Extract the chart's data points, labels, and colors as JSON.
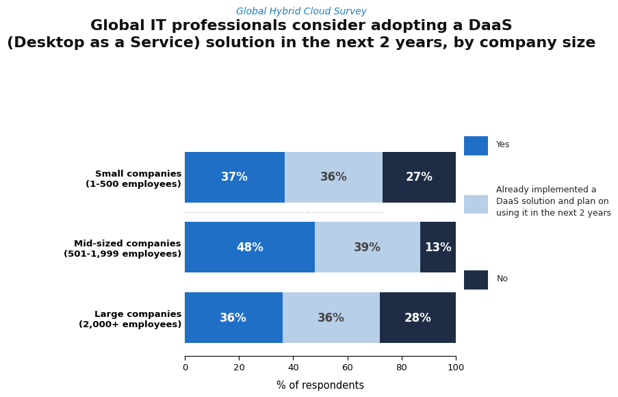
{
  "title_line1": "Global IT professionals consider adopting a DaaS",
  "title_line2": "(Desktop as a Service) solution in the next 2 years, by company size",
  "subtitle": "Global Hybrid Cloud Survey",
  "subtitle_color": "#2080c0",
  "categories": [
    "Large companies\n(2,000+ employees)",
    "Mid-sized companies\n(501-1,999 employees)",
    "Small companies\n(1-500 employees)"
  ],
  "series": {
    "Yes": [
      36,
      48,
      37
    ],
    "Already": [
      36,
      39,
      36
    ],
    "No": [
      28,
      13,
      27
    ]
  },
  "colors": {
    "Yes": "#1f6fc6",
    "Already": "#b8cfe8",
    "No": "#1e2d45"
  },
  "legend_labels": {
    "Yes": "Yes",
    "Already": "Already implemented a\nDaaS solution and plan on\nusing it in the next 2 years",
    "No": "No"
  },
  "xlabel": "% of respondents",
  "xlim": [
    0,
    100
  ],
  "xticks": [
    0,
    20,
    40,
    60,
    80,
    100
  ],
  "bar_height": 0.72,
  "label_fontsize": 12,
  "tick_label_fontsize": 9.5,
  "title_fontsize": 16,
  "subtitle_fontsize": 10,
  "background_color": "#ffffff",
  "dotted_line_color": "#aaaaaa"
}
